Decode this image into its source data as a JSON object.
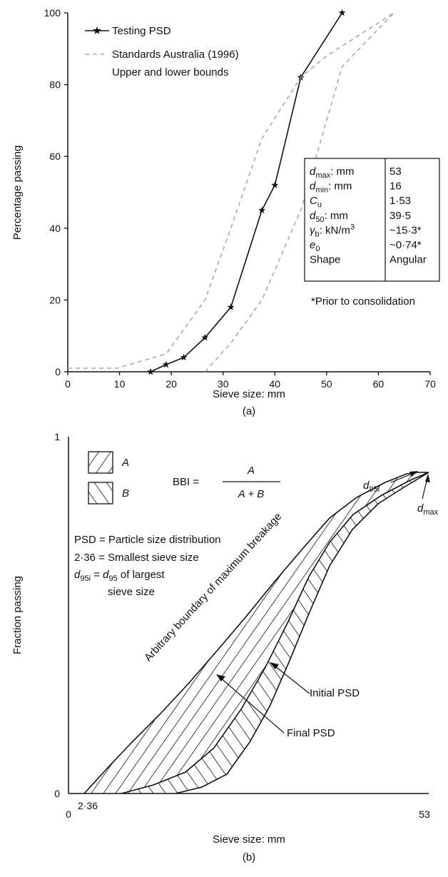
{
  "chart_data": [
    {
      "type": "line",
      "panel_label": "(a)",
      "xlabel": "Sieve size: mm",
      "ylabel": "Percentage passing",
      "xlim": [
        0,
        70
      ],
      "ylim": [
        0,
        100
      ],
      "x_ticks": [
        "0",
        "10",
        "20",
        "30",
        "40",
        "50",
        "60",
        "70"
      ],
      "y_ticks": [
        "0",
        "20",
        "40",
        "60",
        "80",
        "100"
      ],
      "grid": false,
      "legend_position": "top-left",
      "legend": {
        "testing_label": "Testing PSD",
        "standards_label_line1": "Standards Australia (1996)",
        "standards_label_line2": "Upper and lower bounds"
      },
      "series": [
        {
          "name": "Testing PSD",
          "style": "solid-star",
          "points": [
            [
              16,
              0
            ],
            [
              19,
              2
            ],
            [
              22.4,
              4
            ],
            [
              26.5,
              9.5
            ],
            [
              31.5,
              18
            ],
            [
              37.5,
              45
            ],
            [
              40,
              52
            ],
            [
              45,
              82
            ],
            [
              53,
              100
            ]
          ]
        },
        {
          "name": "Standards Australia (1996) upper bound",
          "style": "dashed",
          "points": [
            [
              0,
              1
            ],
            [
              9.5,
              1
            ],
            [
              19,
              5
            ],
            [
              26.5,
              20
            ],
            [
              31.5,
              40
            ],
            [
              37.5,
              65
            ],
            [
              45,
              82
            ],
            [
              50,
              88
            ],
            [
              63,
              100
            ]
          ]
        },
        {
          "name": "Standards Australia (1996) lower bound",
          "style": "dashed",
          "points": [
            [
              26.5,
              0
            ],
            [
              31.5,
              8
            ],
            [
              37.5,
              20
            ],
            [
              45,
              45
            ],
            [
              53,
              85
            ],
            [
              63,
              100
            ]
          ]
        }
      ],
      "properties_table": [
        {
          "param": "d",
          "sub": "max",
          "suffix": ": mm",
          "value": "53"
        },
        {
          "param": "d",
          "sub": "min",
          "suffix": ": mm",
          "value": "16"
        },
        {
          "param": "C",
          "sub": "u",
          "suffix": "",
          "value": "1·53"
        },
        {
          "param": "d",
          "sub": "50",
          "suffix": ": mm",
          "value": "39·5"
        },
        {
          "param": "γ",
          "sub": "b",
          "suffix": ": kN/m",
          "sup": "3",
          "value": "~15·3*"
        },
        {
          "param": "e",
          "sub": "0",
          "suffix": "",
          "value": "~0·74*"
        },
        {
          "param": "Shape",
          "sub": "",
          "suffix": "",
          "value": "Angular"
        }
      ],
      "footnote": "*Prior to consolidation"
    },
    {
      "type": "area",
      "panel_label": "(b)",
      "xlabel": "Sieve size: mm",
      "ylabel": "Fraction passing",
      "x_ticks": [
        "0",
        "53"
      ],
      "y_ticks": [
        "0",
        "1"
      ],
      "x_start_label": "2·36",
      "legend": {
        "a_label": "A",
        "b_label": "B"
      },
      "bbi_formula": {
        "lhs": "BBI =",
        "numerator": "A",
        "denominator": "A + B"
      },
      "notes": [
        "PSD = Particle size distribution",
        "2·36 = Smallest sieve size",
        "d95i = d95 of largest",
        "sieve size"
      ],
      "annotations": {
        "boundary": "Arbitrary boundary of maximum breakage",
        "initial": "Initial PSD",
        "final": "Final PSD",
        "d95i": "d95i",
        "dmax": "dmax"
      }
    }
  ]
}
